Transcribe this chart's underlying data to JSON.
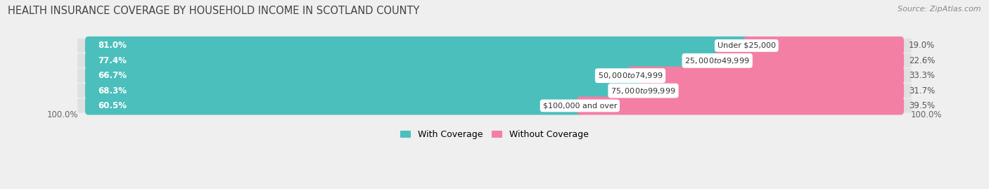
{
  "title": "HEALTH INSURANCE COVERAGE BY HOUSEHOLD INCOME IN SCOTLAND COUNTY",
  "source": "Source: ZipAtlas.com",
  "categories": [
    "Under $25,000",
    "$25,000 to $49,999",
    "$50,000 to $74,999",
    "$75,000 to $99,999",
    "$100,000 and over"
  ],
  "with_coverage": [
    81.0,
    77.4,
    66.7,
    68.3,
    60.5
  ],
  "without_coverage": [
    19.0,
    22.6,
    33.3,
    31.7,
    39.5
  ],
  "color_with": "#4BBFBC",
  "color_without": "#F47FA4",
  "background_color": "#efefef",
  "row_bg_color": "#e0e0e0",
  "title_fontsize": 10.5,
  "pct_fontsize": 8.5,
  "cat_fontsize": 8.0,
  "legend_fontsize": 9,
  "source_fontsize": 8
}
